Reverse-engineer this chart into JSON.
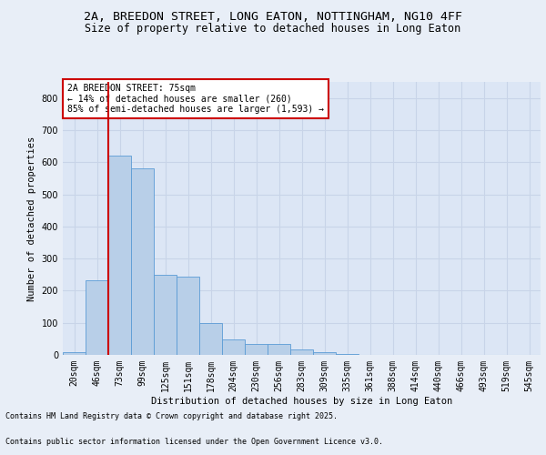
{
  "title1": "2A, BREEDON STREET, LONG EATON, NOTTINGHAM, NG10 4FF",
  "title2": "Size of property relative to detached houses in Long Eaton",
  "xlabel": "Distribution of detached houses by size in Long Eaton",
  "ylabel": "Number of detached properties",
  "bins": [
    "20sqm",
    "46sqm",
    "73sqm",
    "99sqm",
    "125sqm",
    "151sqm",
    "178sqm",
    "204sqm",
    "230sqm",
    "256sqm",
    "283sqm",
    "309sqm",
    "335sqm",
    "361sqm",
    "388sqm",
    "414sqm",
    "440sqm",
    "466sqm",
    "493sqm",
    "519sqm",
    "545sqm"
  ],
  "values": [
    8,
    232,
    620,
    580,
    250,
    245,
    100,
    48,
    35,
    35,
    18,
    8,
    3,
    0,
    0,
    0,
    0,
    0,
    0,
    0,
    0
  ],
  "bar_color": "#b8cfe8",
  "bar_edge_color": "#5b9bd5",
  "vline_color": "#cc0000",
  "annotation_text": "2A BREEDON STREET: 75sqm\n← 14% of detached houses are smaller (260)\n85% of semi-detached houses are larger (1,593) →",
  "annotation_box_color": "#ffffff",
  "annotation_box_edge": "#cc0000",
  "ylim": [
    0,
    850
  ],
  "yticks": [
    0,
    100,
    200,
    300,
    400,
    500,
    600,
    700,
    800
  ],
  "background_color": "#e8eef7",
  "plot_background": "#dce6f5",
  "grid_color": "#c8d4e8",
  "footer_line1": "Contains HM Land Registry data © Crown copyright and database right 2025.",
  "footer_line2": "Contains public sector information licensed under the Open Government Licence v3.0.",
  "title_fontsize": 9.5,
  "subtitle_fontsize": 8.5,
  "axis_label_fontsize": 7.5,
  "tick_fontsize": 7,
  "annotation_fontsize": 7,
  "footer_fontsize": 6
}
